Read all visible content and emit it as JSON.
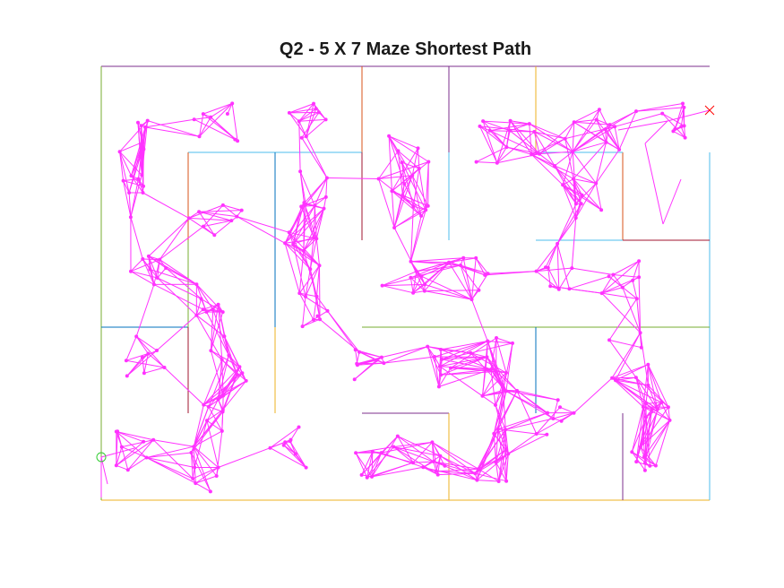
{
  "title": "Q2 - 5 X 7 Maze Shortest Path",
  "maze": {
    "rows": 5,
    "cols": 7,
    "start_marker": "circle",
    "goal_marker": "x",
    "colors": {
      "graph": "#ff33ff",
      "start": "#33cc33",
      "goal": "#ff0000",
      "walls": [
        "#7e2f8e",
        "#77ac30",
        "#a2142f",
        "#0072bd",
        "#d95319",
        "#edb120",
        "#4dbeee"
      ]
    }
  }
}
